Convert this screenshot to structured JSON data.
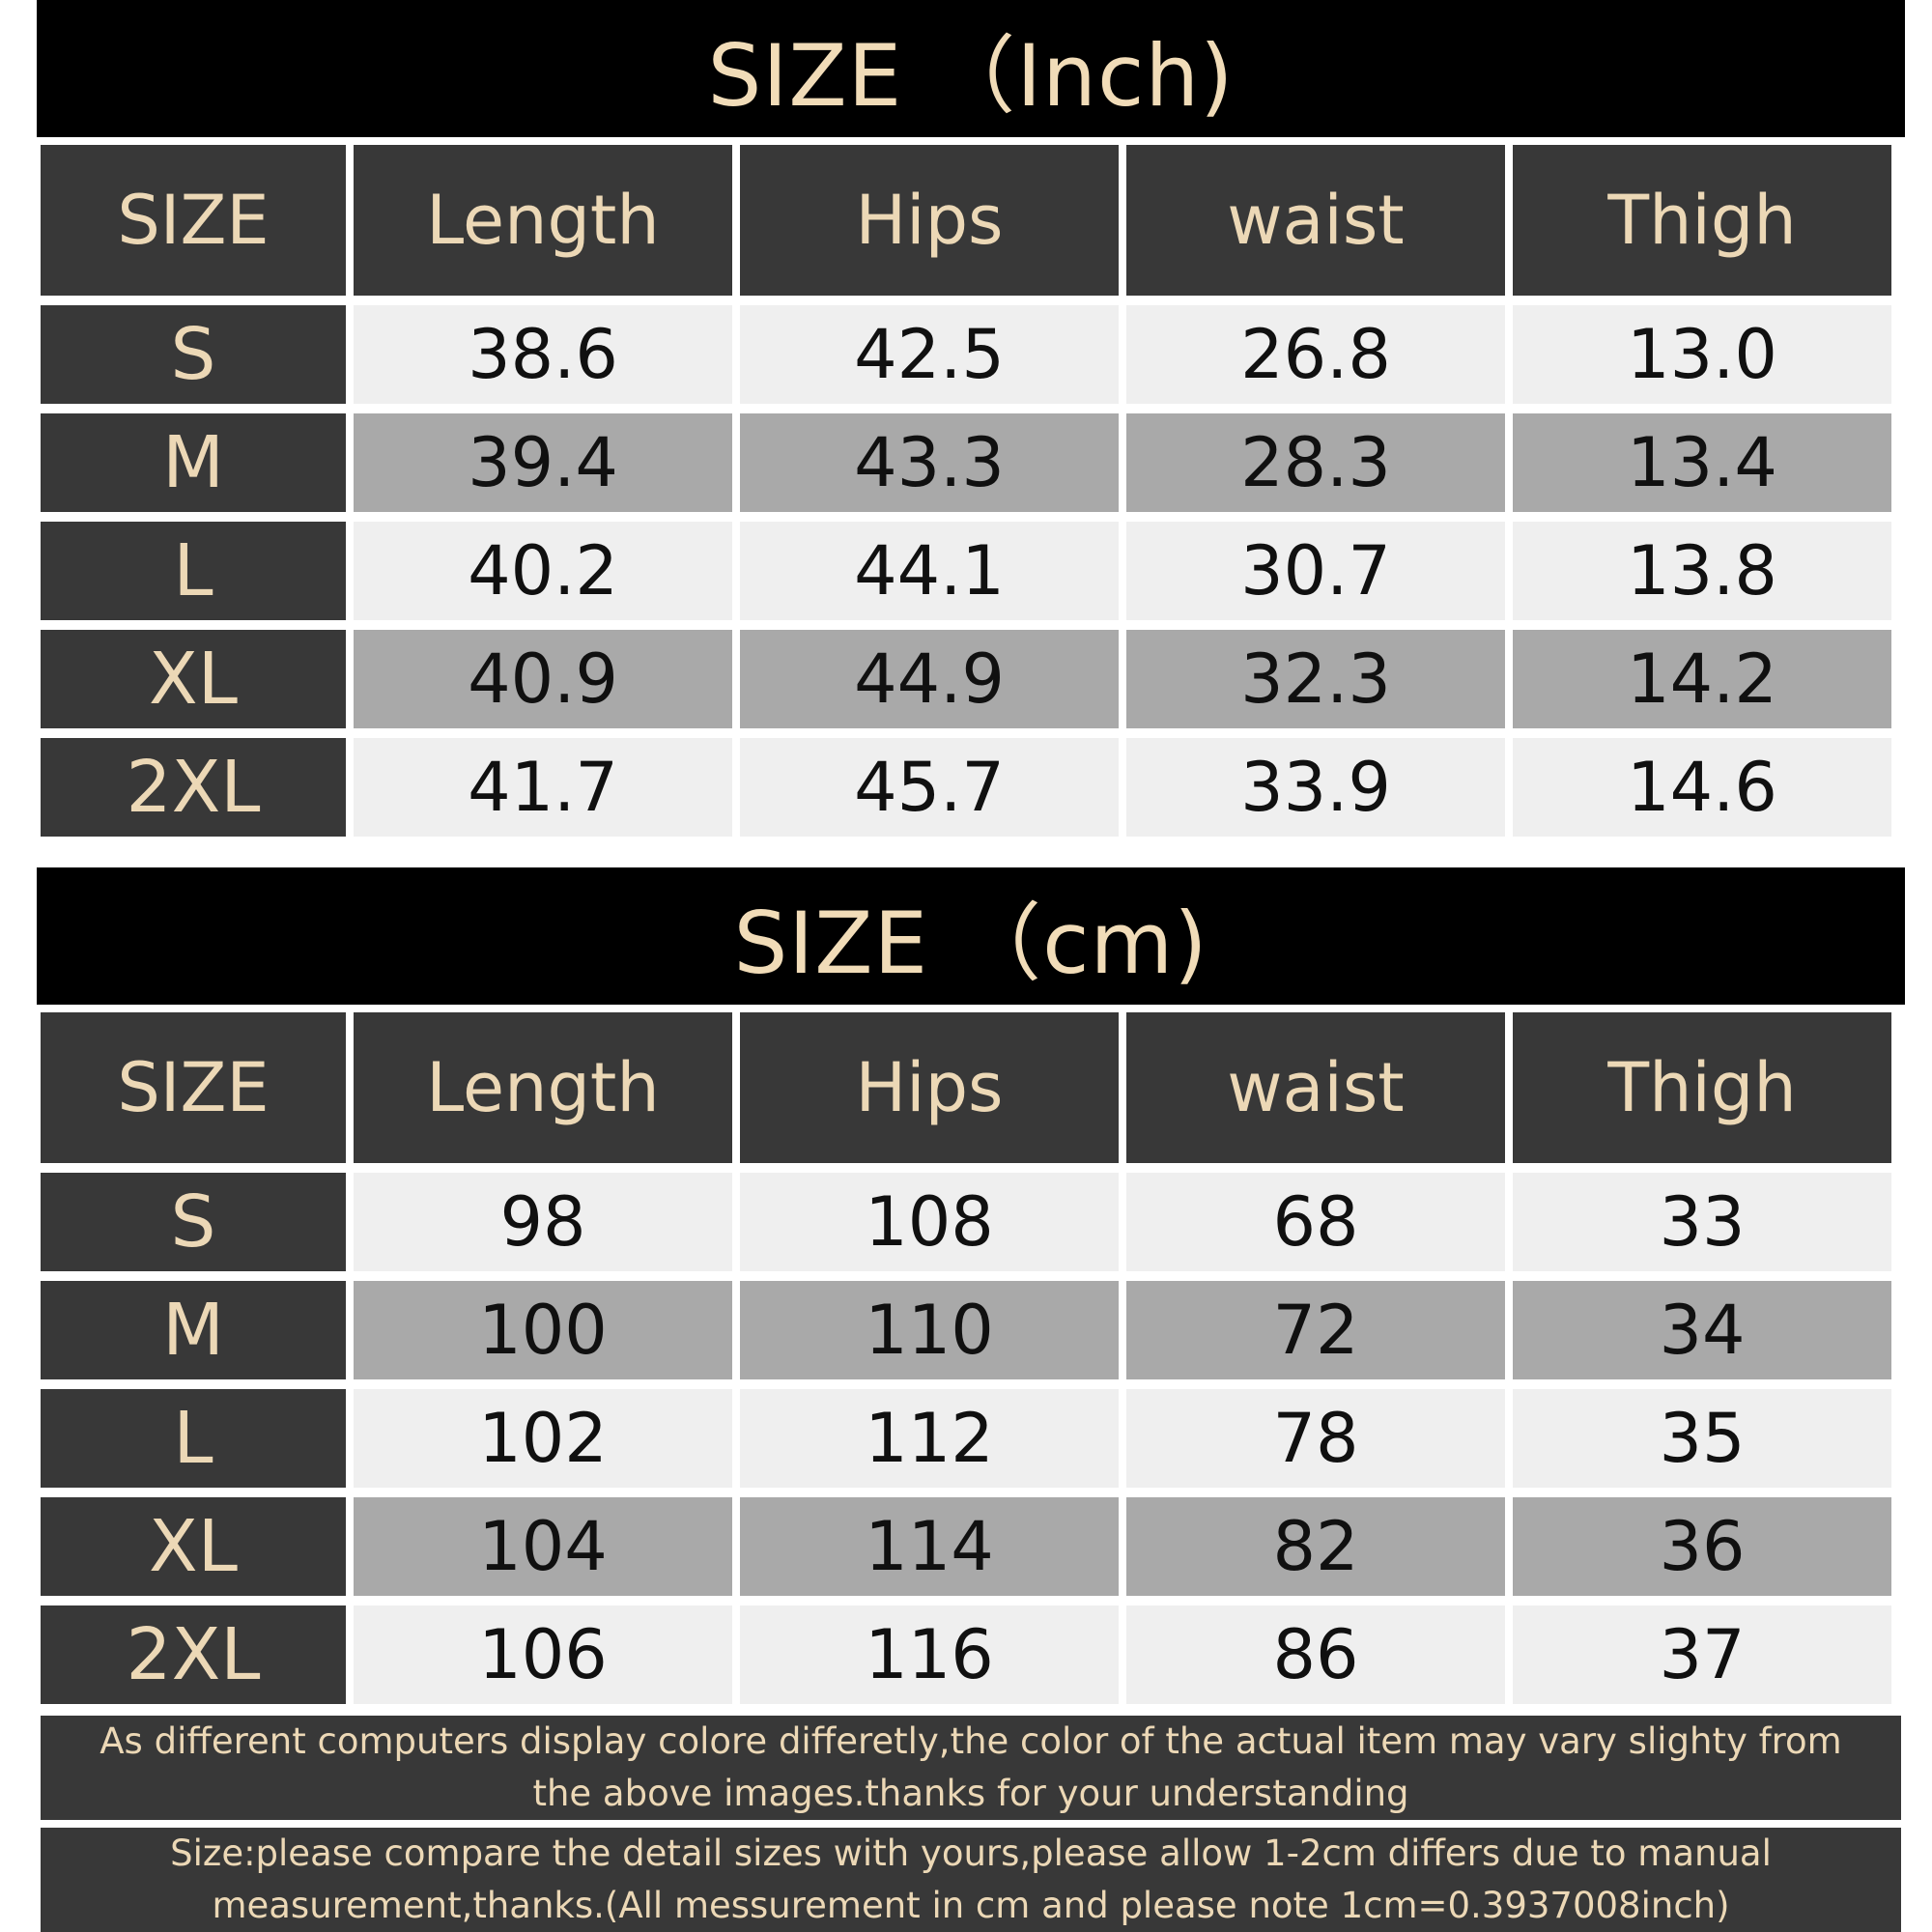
{
  "inch": {
    "title": "SIZE （Inch)",
    "headers": [
      "SIZE",
      "Length",
      "Hips",
      "waist",
      "Thigh"
    ],
    "rows": [
      {
        "size": "S",
        "length": "38.6",
        "hips": "42.5",
        "waist": "26.8",
        "thigh": "13.0"
      },
      {
        "size": "M",
        "length": "39.4",
        "hips": "43.3",
        "waist": "28.3",
        "thigh": "13.4"
      },
      {
        "size": "L",
        "length": "40.2",
        "hips": "44.1",
        "waist": "30.7",
        "thigh": "13.8"
      },
      {
        "size": "XL",
        "length": "40.9",
        "hips": "44.9",
        "waist": "32.3",
        "thigh": "14.2"
      },
      {
        "size": "2XL",
        "length": "41.7",
        "hips": "45.7",
        "waist": "33.9",
        "thigh": "14.6"
      }
    ]
  },
  "cm": {
    "title": "SIZE （cm)",
    "headers": [
      "SIZE",
      "Length",
      "Hips",
      "waist",
      "Thigh"
    ],
    "rows": [
      {
        "size": "S",
        "length": "98",
        "hips": "108",
        "waist": "68",
        "thigh": "33"
      },
      {
        "size": "M",
        "length": "100",
        "hips": "110",
        "waist": "72",
        "thigh": "34"
      },
      {
        "size": "L",
        "length": "102",
        "hips": "112",
        "waist": "78",
        "thigh": "35"
      },
      {
        "size": "XL",
        "length": "104",
        "hips": "114",
        "waist": "82",
        "thigh": "36"
      },
      {
        "size": "2XL",
        "length": "106",
        "hips": "116",
        "waist": "86",
        "thigh": "37"
      }
    ]
  },
  "notes": {
    "color_note": "As different computers display colore differetly,the color of the actual item may vary slighty from the above images.thanks for your understanding",
    "size_note": "Size:please compare the detail sizes with yours,please allow 1-2cm differs due to manual measurement,thanks.(All messurement in cm and please note 1cm=0.3937008inch)"
  },
  "colors": {
    "banner_bg": "#000000",
    "header_bg": "#383838",
    "accent_text": "#ecd8b6",
    "row_light": "#efefef",
    "row_dark": "#a9a9a9"
  }
}
